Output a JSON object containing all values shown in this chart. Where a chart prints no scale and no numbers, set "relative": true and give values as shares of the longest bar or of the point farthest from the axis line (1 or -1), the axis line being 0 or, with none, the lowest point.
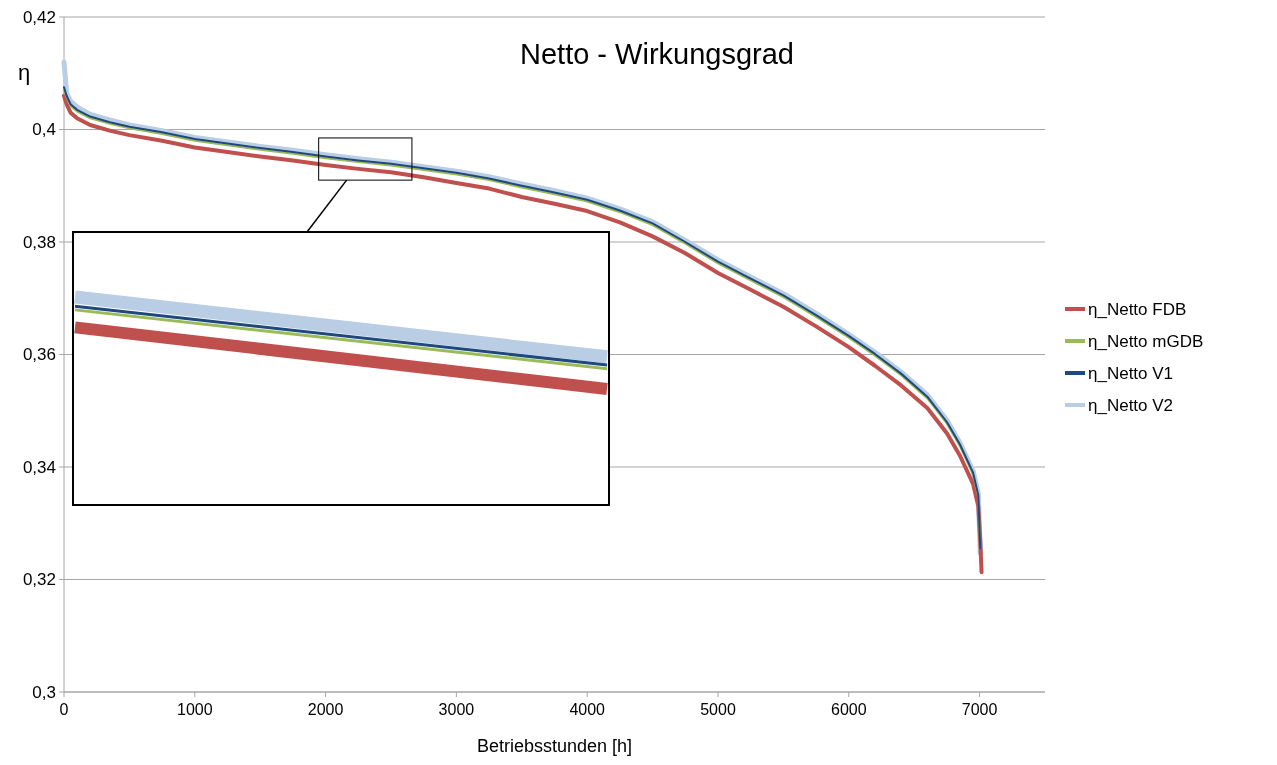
{
  "chart_data": [
    {
      "type": "line",
      "title": "Netto - Wirkungsgrad",
      "xlabel": "Betriebsstunden [h]",
      "ylabel": "η",
      "x": [
        0,
        20,
        50,
        100,
        200,
        350,
        500,
        750,
        1000,
        1250,
        1500,
        1750,
        2000,
        2250,
        2500,
        2750,
        3000,
        3250,
        3500,
        3750,
        4000,
        4250,
        4500,
        4750,
        5000,
        5250,
        5500,
        5750,
        6000,
        6200,
        6400,
        6600,
        6750,
        6850,
        6950,
        6990,
        7005,
        7015
      ],
      "series": [
        {
          "name": "η_Netto FDB",
          "color": "#c0504d",
          "values": [
            0.406,
            0.4045,
            0.403,
            0.402,
            0.4008,
            0.3998,
            0.399,
            0.398,
            0.3968,
            0.396,
            0.3952,
            0.3945,
            0.3937,
            0.393,
            0.3924,
            0.3915,
            0.3905,
            0.3895,
            0.388,
            0.3868,
            0.3855,
            0.3835,
            0.381,
            0.378,
            0.3745,
            0.3715,
            0.3685,
            0.365,
            0.3613,
            0.358,
            0.3545,
            0.3505,
            0.346,
            0.342,
            0.337,
            0.333,
            0.327,
            0.3213
          ]
        },
        {
          "name": "η_Netto mGDB",
          "color": "#9bbb59",
          "values": [
            0.407,
            0.4057,
            0.4042,
            0.4032,
            0.402,
            0.401,
            0.4002,
            0.3992,
            0.398,
            0.3972,
            0.3964,
            0.3957,
            0.3949,
            0.3942,
            0.3936,
            0.3928,
            0.392,
            0.391,
            0.3897,
            0.3885,
            0.3872,
            0.3853,
            0.383,
            0.3797,
            0.3762,
            0.3732,
            0.3702,
            0.3667,
            0.363,
            0.3598,
            0.3563,
            0.3522,
            0.3477,
            0.3437,
            0.3387,
            0.3347,
            0.3255,
            null
          ]
        },
        {
          "name": "η_Netto V1",
          "color": "#1f497d",
          "values": [
            0.4075,
            0.406,
            0.4045,
            0.4035,
            0.4023,
            0.4013,
            0.4005,
            0.3995,
            0.3983,
            0.3975,
            0.3967,
            0.396,
            0.3952,
            0.3945,
            0.3939,
            0.3931,
            0.3923,
            0.3913,
            0.39,
            0.3888,
            0.3875,
            0.3856,
            0.3833,
            0.38,
            0.3765,
            0.3735,
            0.3705,
            0.367,
            0.3633,
            0.3601,
            0.3566,
            0.3525,
            0.348,
            0.344,
            0.339,
            0.335,
            0.3255,
            null
          ]
        },
        {
          "name": "η_Netto V2",
          "color": "#b9cde5",
          "values": [
            0.412,
            0.4065,
            0.405,
            0.404,
            0.4027,
            0.4017,
            0.4008,
            0.3998,
            0.3986,
            0.3978,
            0.397,
            0.3963,
            0.3955,
            0.3948,
            0.3942,
            0.3934,
            0.3926,
            0.3916,
            0.3903,
            0.3891,
            0.3878,
            0.3859,
            0.3836,
            0.3803,
            0.3768,
            0.3738,
            0.3708,
            0.3673,
            0.3636,
            0.3604,
            0.3569,
            0.3528,
            0.3483,
            0.3443,
            0.3393,
            0.3353,
            0.3247,
            null
          ]
        }
      ],
      "xlim": [
        0,
        7500
      ],
      "xticks": [
        0,
        1000,
        2000,
        3000,
        4000,
        5000,
        6000,
        7000
      ],
      "ylim": [
        0.3,
        0.42
      ],
      "yticks": [
        {
          "value": 0.3,
          "label": "0,3"
        },
        {
          "value": 0.32,
          "label": "0,32"
        },
        {
          "value": 0.34,
          "label": "0,34"
        },
        {
          "value": 0.36,
          "label": "0,36"
        },
        {
          "value": 0.38,
          "label": "0,38"
        },
        {
          "value": 0.4,
          "label": "0,4"
        },
        {
          "value": 0.42,
          "label": "0,42"
        }
      ],
      "grid": "y",
      "legend": "right"
    },
    {
      "type": "line",
      "relative": true,
      "categories": [
        null,
        null
      ],
      "series": [
        {
          "color": "#c0504d",
          "values": [
            0.67,
            0
          ]
        },
        {
          "color": "#9bbb59",
          "values": [
            0.86,
            0.22
          ]
        },
        {
          "color": "#1f497d",
          "values": [
            0.9,
            0.26
          ]
        },
        {
          "color": "#b9cde5",
          "values": [
            1,
            0.35
          ]
        }
      ]
    }
  ]
}
